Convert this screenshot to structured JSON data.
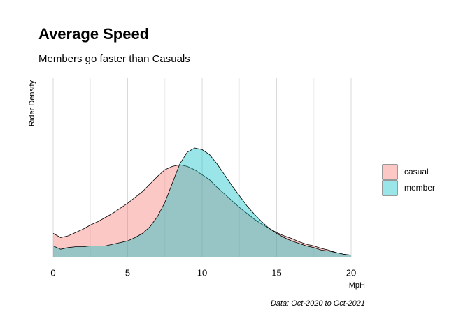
{
  "chart_data": {
    "type": "density",
    "title": "Average Speed",
    "subtitle": "Members go faster than Casuals",
    "x_label": "MpH",
    "y_label": "Rider Density",
    "caption": "Data: Oct-2020 to Oct-2021",
    "x": [
      0,
      0.5,
      1,
      1.5,
      2,
      2.5,
      3,
      3.5,
      4,
      4.5,
      5,
      5.5,
      6,
      6.5,
      7,
      7.5,
      8,
      8.5,
      9,
      9.5,
      10,
      10.5,
      11,
      11.5,
      12,
      12.5,
      13,
      13.5,
      14,
      14.5,
      15,
      15.5,
      16,
      16.5,
      17,
      17.5,
      18,
      18.5,
      19,
      19.5,
      20
    ],
    "series": [
      {
        "name": "casual",
        "color": "#F8766D",
        "values": [
          0.028,
          0.023,
          0.025,
          0.029,
          0.033,
          0.038,
          0.042,
          0.047,
          0.052,
          0.058,
          0.064,
          0.071,
          0.078,
          0.087,
          0.096,
          0.104,
          0.108,
          0.11,
          0.108,
          0.104,
          0.098,
          0.092,
          0.083,
          0.075,
          0.067,
          0.059,
          0.052,
          0.045,
          0.039,
          0.034,
          0.029,
          0.025,
          0.022,
          0.018,
          0.015,
          0.013,
          0.01,
          0.008,
          0.005,
          0.003,
          0.002
        ]
      },
      {
        "name": "member",
        "color": "#00BFC4",
        "values": [
          0.013,
          0.009,
          0.011,
          0.012,
          0.012,
          0.013,
          0.013,
          0.013,
          0.015,
          0.017,
          0.019,
          0.023,
          0.028,
          0.036,
          0.048,
          0.065,
          0.088,
          0.111,
          0.125,
          0.13,
          0.128,
          0.122,
          0.111,
          0.098,
          0.085,
          0.073,
          0.061,
          0.051,
          0.042,
          0.034,
          0.028,
          0.023,
          0.019,
          0.016,
          0.013,
          0.011,
          0.008,
          0.007,
          0.005,
          0.003,
          0.002
        ]
      }
    ],
    "xlim": [
      0,
      20
    ],
    "ylim": [
      0,
      0.2
    ],
    "xticks": [
      0,
      5,
      10,
      15,
      20
    ],
    "xminor": [
      2.5,
      7.5,
      12.5,
      17.5
    ],
    "grid": true,
    "legend": "right"
  }
}
